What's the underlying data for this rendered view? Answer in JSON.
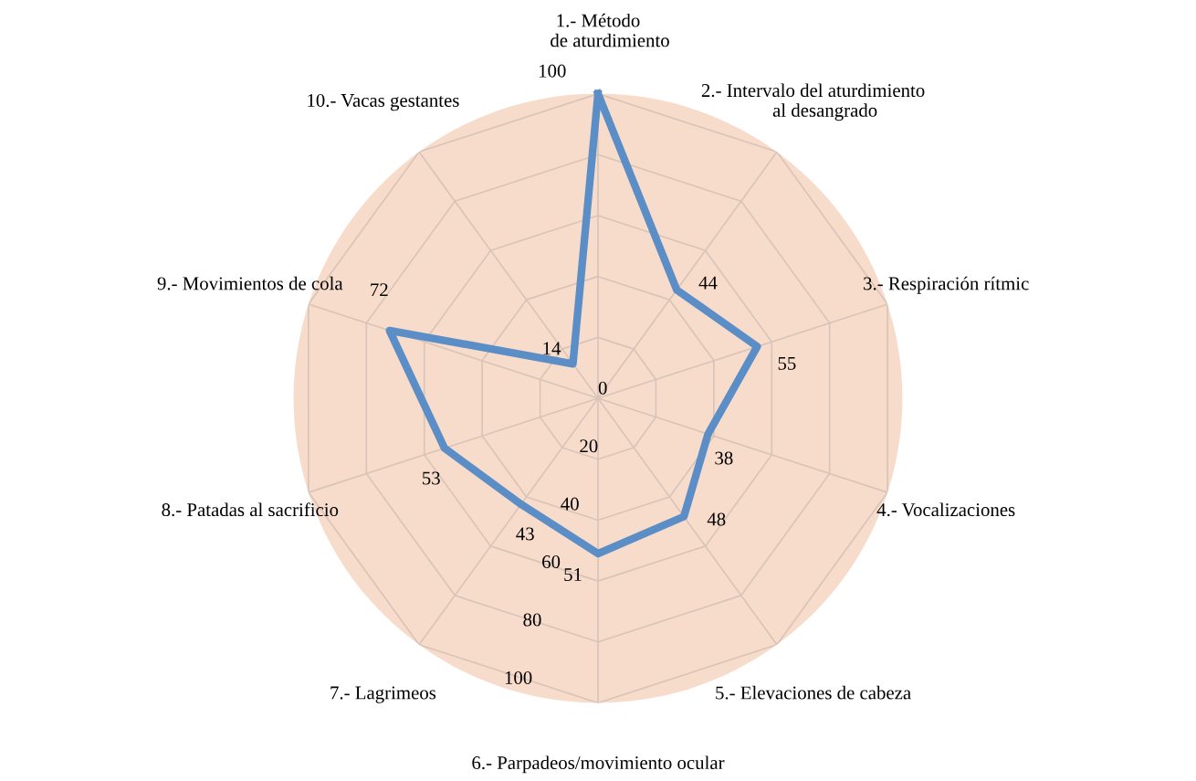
{
  "chart_data": {
    "type": "radar",
    "categories": [
      "1.- Método\n     de aturdimiento",
      "2.- Intervalo del aturdimiento\n     al desangrado",
      "3.- Respiración rítmic",
      "4.- Vocalizaciones",
      "5.- Elevaciones de cabeza",
      "6.- Parpadeos/movimiento ocular",
      "7.- Lagrimeos",
      "8.- Patadas al sacrificio",
      "9.- Movimientos de cola",
      "10.- Vacas gestantes"
    ],
    "series": [
      {
        "color": "#5b8ec6",
        "values": [
          100,
          44,
          55,
          38,
          48,
          51,
          43,
          53,
          72,
          14
        ]
      }
    ],
    "ylim": [
      0,
      100
    ],
    "yticks": [
      0,
      20,
      40,
      60,
      80,
      100
    ],
    "data_labels": true,
    "grid": true,
    "marker": "none",
    "line_style": "solid"
  }
}
